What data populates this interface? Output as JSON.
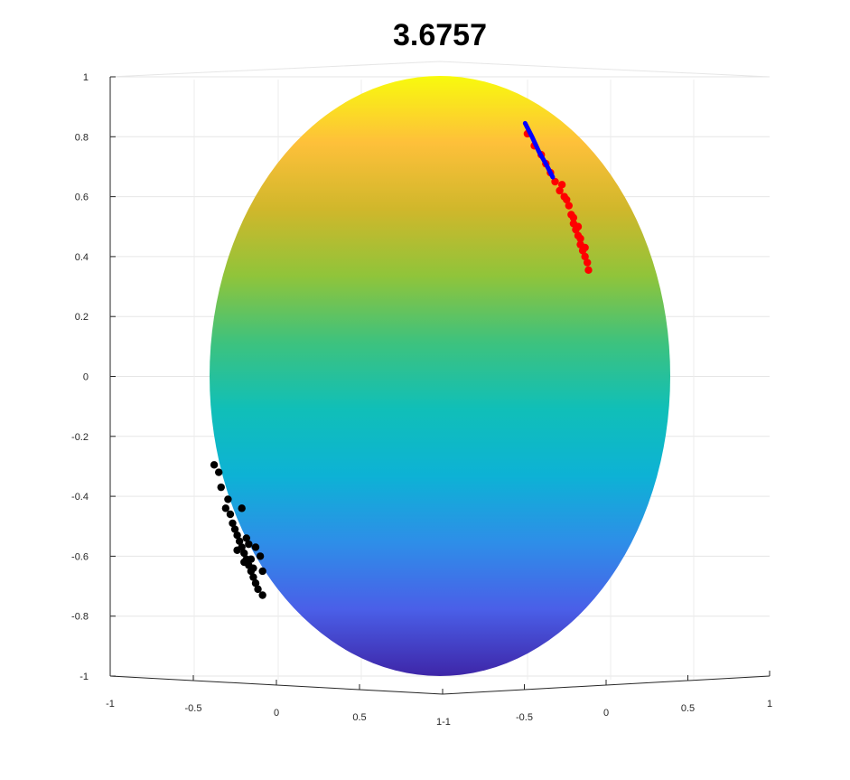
{
  "chart_data": {
    "type": "scatter",
    "subtype": "3d-surface-sphere",
    "title": "3.6757",
    "grid": true,
    "colormap": [
      "#3e26a8",
      "#4a5fe8",
      "#2e8ee8",
      "#0db2d5",
      "#10bfb8",
      "#3dc27e",
      "#90c43a",
      "#d0b72b",
      "#fec03a",
      "#f8fa0d"
    ],
    "zlabels": [
      "1",
      "0.8",
      "0.6",
      "0.4",
      "0.2",
      "0",
      "-0.2",
      "-0.4",
      "-0.6",
      "-0.8",
      "-1"
    ],
    "zlim": [
      -1,
      1
    ],
    "xlabels": [
      "-1",
      "-0.5",
      "0",
      "0.5",
      "1"
    ],
    "xlim": [
      -1,
      1
    ],
    "ylabels": [
      "-1",
      "-0.5",
      "0",
      "0.5",
      "1"
    ],
    "ylim": [
      -1,
      1
    ],
    "series": [
      {
        "color": "#ff0000",
        "marker": "dot",
        "points": [
          {
            "h": 0.38,
            "z": 0.81
          },
          {
            "h": 0.41,
            "z": 0.77
          },
          {
            "h": 0.44,
            "z": 0.74
          },
          {
            "h": 0.46,
            "z": 0.71
          },
          {
            "h": 0.48,
            "z": 0.68
          },
          {
            "h": 0.5,
            "z": 0.65
          },
          {
            "h": 0.52,
            "z": 0.62
          },
          {
            "h": 0.54,
            "z": 0.6
          },
          {
            "h": 0.56,
            "z": 0.57
          },
          {
            "h": 0.57,
            "z": 0.54
          },
          {
            "h": 0.58,
            "z": 0.51
          },
          {
            "h": 0.59,
            "z": 0.49
          },
          {
            "h": 0.6,
            "z": 0.47
          },
          {
            "h": 0.61,
            "z": 0.44
          },
          {
            "h": 0.62,
            "z": 0.42
          },
          {
            "h": 0.63,
            "z": 0.4
          },
          {
            "h": 0.64,
            "z": 0.38
          },
          {
            "h": 0.645,
            "z": 0.355
          },
          {
            "h": 0.53,
            "z": 0.64
          },
          {
            "h": 0.55,
            "z": 0.59
          },
          {
            "h": 0.58,
            "z": 0.53
          },
          {
            "h": 0.6,
            "z": 0.5
          },
          {
            "h": 0.61,
            "z": 0.46
          },
          {
            "h": 0.63,
            "z": 0.43
          }
        ]
      },
      {
        "color": "#0000ff",
        "marker": "line",
        "points": [
          {
            "h": 0.37,
            "z": 0.845
          },
          {
            "h": 0.4,
            "z": 0.8
          },
          {
            "h": 0.43,
            "z": 0.75
          },
          {
            "h": 0.46,
            "z": 0.71
          },
          {
            "h": 0.49,
            "z": 0.665
          }
        ]
      },
      {
        "color": "#000000",
        "marker": "dot",
        "points": [
          {
            "h": -0.98,
            "z": -0.295
          },
          {
            "h": -0.96,
            "z": -0.32
          },
          {
            "h": -0.95,
            "z": -0.37
          },
          {
            "h": -0.92,
            "z": -0.41
          },
          {
            "h": -0.93,
            "z": -0.44
          },
          {
            "h": -0.91,
            "z": -0.46
          },
          {
            "h": -0.9,
            "z": -0.49
          },
          {
            "h": -0.89,
            "z": -0.51
          },
          {
            "h": -0.88,
            "z": -0.53
          },
          {
            "h": -0.87,
            "z": -0.55
          },
          {
            "h": -0.86,
            "z": -0.57
          },
          {
            "h": -0.85,
            "z": -0.59
          },
          {
            "h": -0.84,
            "z": -0.61
          },
          {
            "h": -0.83,
            "z": -0.63
          },
          {
            "h": -0.82,
            "z": -0.65
          },
          {
            "h": -0.81,
            "z": -0.67
          },
          {
            "h": -0.8,
            "z": -0.69
          },
          {
            "h": -0.79,
            "z": -0.71
          },
          {
            "h": -0.77,
            "z": -0.73
          },
          {
            "h": -0.86,
            "z": -0.44
          },
          {
            "h": -0.83,
            "z": -0.56
          },
          {
            "h": -0.8,
            "z": -0.57
          },
          {
            "h": -0.78,
            "z": -0.6
          },
          {
            "h": -0.82,
            "z": -0.61
          },
          {
            "h": -0.77,
            "z": -0.65
          },
          {
            "h": -0.88,
            "z": -0.58
          },
          {
            "h": -0.85,
            "z": -0.62
          },
          {
            "h": -0.81,
            "z": -0.64
          },
          {
            "h": -0.84,
            "z": -0.54
          }
        ]
      }
    ]
  }
}
